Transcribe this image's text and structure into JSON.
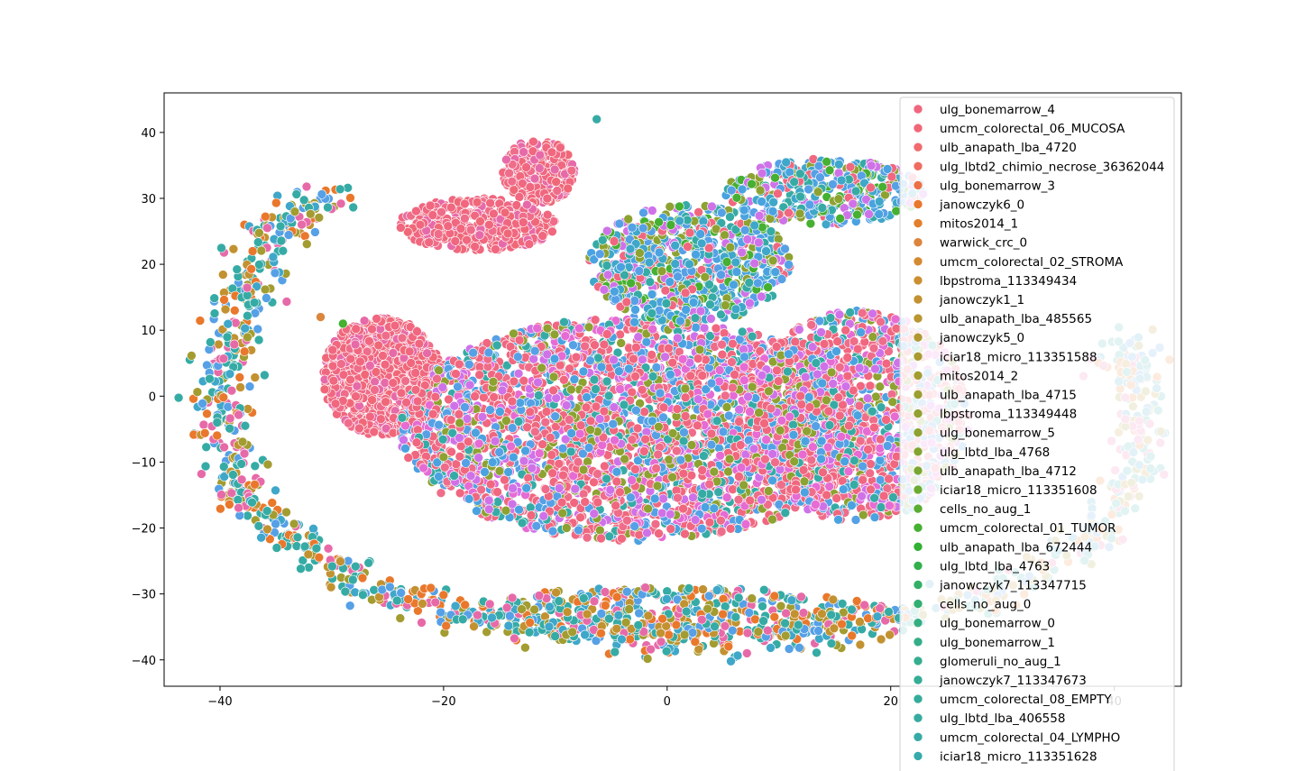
{
  "chart_data": {
    "type": "scatter",
    "title": "",
    "xlabel": "",
    "ylabel": "",
    "xlim": [
      -45,
      46
    ],
    "ylim": [
      -44,
      46
    ],
    "xticks": [
      -40,
      -20,
      0,
      20,
      40
    ],
    "yticks": [
      -40,
      -30,
      -20,
      -10,
      0,
      10,
      20,
      30,
      40
    ],
    "xtick_labels": [
      "−40",
      "−20",
      "0",
      "20",
      "40"
    ],
    "ytick_labels": [
      "−40",
      "−30",
      "−20",
      "−10",
      "0",
      "10",
      "20",
      "30",
      "40"
    ],
    "grid": false,
    "legend_position": "top-right (overflowing below plot)",
    "legend_visible_entries": [
      {
        "name": "ulg_bonemarrow_4",
        "color": "#f0677f"
      },
      {
        "name": "umcm_colorectal_06_MUCOSA",
        "color": "#f06878"
      },
      {
        "name": "ulb_anapath_lba_4720",
        "color": "#f06a6e"
      },
      {
        "name": "ulg_lbtd2_chimio_necrose_36362044",
        "color": "#ef6d5f"
      },
      {
        "name": "ulg_bonemarrow_3",
        "color": "#ec7046"
      },
      {
        "name": "janowczyk6_0",
        "color": "#e9782c"
      },
      {
        "name": "mitos2014_1",
        "color": "#e27f2c"
      },
      {
        "name": "warwick_crc_0",
        "color": "#dc853d"
      },
      {
        "name": "umcm_colorectal_02_STROMA",
        "color": "#d38a32"
      },
      {
        "name": "lbpstroma_113349434",
        "color": "#cb8e31"
      },
      {
        "name": "janowczyk1_1",
        "color": "#c29231"
      },
      {
        "name": "ulb_anapath_lba_485565",
        "color": "#ba9531"
      },
      {
        "name": "janowczyk5_0",
        "color": "#b29831"
      },
      {
        "name": "iciar18_micro_113351588",
        "color": "#aa9a31"
      },
      {
        "name": "mitos2014_2",
        "color": "#a39c31"
      },
      {
        "name": "ulb_anapath_lba_4715",
        "color": "#9c9e31"
      },
      {
        "name": "lbpstroma_113349448",
        "color": "#94a031"
      },
      {
        "name": "ulg_bonemarrow_5",
        "color": "#8da231"
      },
      {
        "name": "ulg_lbtd_lba_4768",
        "color": "#84a431"
      },
      {
        "name": "ulb_anapath_lba_4712",
        "color": "#79a731"
      },
      {
        "name": "iciar18_micro_113351608",
        "color": "#6cab31"
      },
      {
        "name": "cells_no_aug_1",
        "color": "#5bad31"
      },
      {
        "name": "umcm_colorectal_01_TUMOR",
        "color": "#45b031"
      },
      {
        "name": "ulb_anapath_lba_672444",
        "color": "#31b031"
      },
      {
        "name": "ulg_lbtd_lba_4763",
        "color": "#32b04a"
      },
      {
        "name": "janowczyk7_113347715",
        "color": "#33b065"
      },
      {
        "name": "cells_no_aug_0",
        "color": "#33af74"
      },
      {
        "name": "ulg_bonemarrow_0",
        "color": "#34ae80"
      },
      {
        "name": "ulg_bonemarrow_1",
        "color": "#34ae88"
      },
      {
        "name": "glomeruli_no_aug_1",
        "color": "#35ad8f"
      },
      {
        "name": "janowczyk7_113347673",
        "color": "#35ad95"
      },
      {
        "name": "umcm_colorectal_08_EMPTY",
        "color": "#35ac9b"
      },
      {
        "name": "ulg_lbtd_lba_406558",
        "color": "#36aba0"
      },
      {
        "name": "umcm_colorectal_04_LYMPHO",
        "color": "#36aba5"
      },
      {
        "name": "iciar18_micro_113351628",
        "color": "#36aaaa"
      }
    ],
    "clusters": [
      {
        "desc": "pink dense left core",
        "cx": -25.5,
        "cy": 3,
        "rx": 5.3,
        "ry": 9,
        "n": 900,
        "palette": "pink"
      },
      {
        "desc": "pink main body",
        "cx": -3,
        "cy": -5,
        "rx": 21,
        "ry": 17,
        "n": 3200,
        "palette": "mix"
      },
      {
        "desc": "pink right body",
        "cx": 17,
        "cy": -3,
        "rx": 10,
        "ry": 16,
        "n": 1300,
        "palette": "mix"
      },
      {
        "desc": "pink top blob",
        "cx": -11.5,
        "cy": 34,
        "rx": 3.2,
        "ry": 5,
        "n": 250,
        "palette": "pink"
      },
      {
        "desc": "pink upper band",
        "cx": -17,
        "cy": 26,
        "rx": 7,
        "ry": 4,
        "n": 400,
        "palette": "pink"
      },
      {
        "desc": "blue upper middle",
        "cx": 2,
        "cy": 20,
        "rx": 9,
        "ry": 9,
        "n": 700,
        "palette": "blue"
      },
      {
        "desc": "blue top-right band",
        "cx": 14,
        "cy": 31,
        "rx": 9,
        "ry": 5,
        "n": 400,
        "palette": "blue"
      },
      {
        "desc": "teal bottom band",
        "cx": 0,
        "cy": -33,
        "rx": 20,
        "ry": 4,
        "n": 500,
        "palette": "outer"
      }
    ],
    "outer_arc_points": [
      {
        "x": -30,
        "y": 31
      },
      {
        "x": -35,
        "y": 25
      },
      {
        "x": -38,
        "y": 15
      },
      {
        "x": -40,
        "y": 5
      },
      {
        "x": -40,
        "y": -5
      },
      {
        "x": -38,
        "y": -15
      },
      {
        "x": -33,
        "y": -23
      },
      {
        "x": -25,
        "y": -30
      },
      {
        "x": -15,
        "y": -34
      },
      {
        "x": 0,
        "y": -38
      },
      {
        "x": 15,
        "y": -36
      },
      {
        "x": 28,
        "y": -31
      },
      {
        "x": 38,
        "y": -22
      },
      {
        "x": 42,
        "y": -10
      },
      {
        "x": 42,
        "y": 2
      },
      {
        "x": 40,
        "y": 8
      }
    ],
    "outliers": [
      {
        "x": -6.3,
        "y": 42,
        "color": "#36aba5"
      },
      {
        "x": -29,
        "y": 11,
        "color": "#45b031"
      },
      {
        "x": -31,
        "y": 12,
        "color": "#dc853d"
      }
    ]
  }
}
